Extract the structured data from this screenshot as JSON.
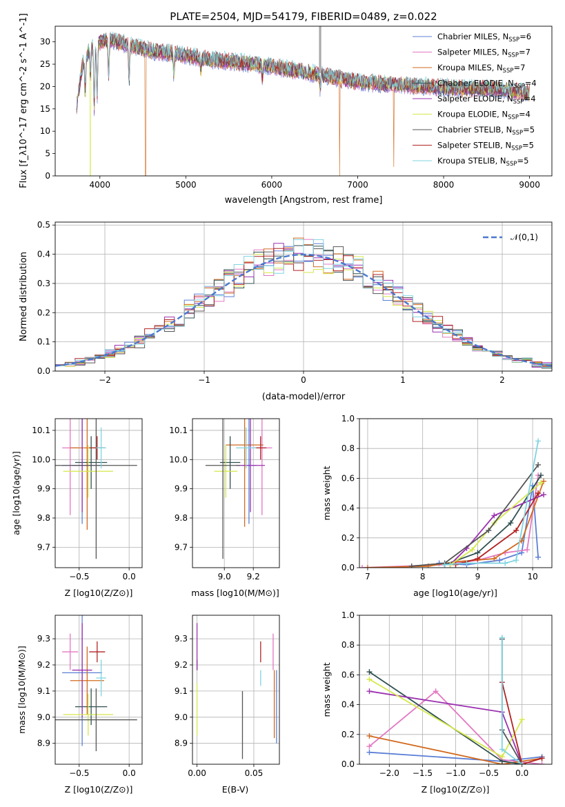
{
  "figure": {
    "title": "PLATE=2504, MJD=54179, FIBERID=0489, z=0.022"
  },
  "colors": {
    "chabrier_miles": "#5b7fd6",
    "salpeter_miles": "#e377c2",
    "kroupa_miles": "#d2691e",
    "chabrier_elodie": "#2f4f4f",
    "salpeter_elodie": "#9b30b0",
    "kroupa_elodie": "#d4e84a",
    "chabrier_stelib": "#555555",
    "salpeter_stelib": "#b22222",
    "kroupa_stelib": "#7fd4e0"
  },
  "chart_data": [
    {
      "id": "spectrum",
      "type": "line",
      "xlabel": "wavelength [Angstrom, rest frame]",
      "ylabel": "Flux [f_λ10^-17 erg cm^-2 s^-1 A^-1]",
      "xlim": [
        3480,
        9260
      ],
      "ylim": [
        0,
        33.5
      ],
      "xticks": [
        4000,
        5000,
        6000,
        7000,
        8000,
        9000
      ],
      "yticks": [
        0,
        5,
        10,
        15,
        20,
        25,
        30
      ],
      "legend_position": "top-right",
      "legend": [
        {
          "label": "Chabrier MILES, N",
          "sub": "SSP",
          "suffix": "=6",
          "color": "#5b7fd6"
        },
        {
          "label": "Salpeter MILES, N",
          "sub": "SSP",
          "suffix": "=7",
          "color": "#e377c2"
        },
        {
          "label": "Kroupa MILES, N",
          "sub": "SSP",
          "suffix": "=7",
          "color": "#d2691e"
        },
        {
          "label": "Chabrier ELODIE, N",
          "sub": "SSP",
          "suffix": "=4",
          "color": "#2f4f4f"
        },
        {
          "label": "Salpeter ELODIE, N",
          "sub": "SSP",
          "suffix": "=4",
          "color": "#9b30b0"
        },
        {
          "label": "Kroupa ELODIE, N",
          "sub": "SSP",
          "suffix": "=4",
          "color": "#d4e84a"
        },
        {
          "label": "Chabrier STELIB, N",
          "sub": "SSP",
          "suffix": "=5",
          "color": "#555555"
        },
        {
          "label": "Salpeter STELIB, N",
          "sub": "SSP",
          "suffix": "=5",
          "color": "#b22222"
        },
        {
          "label": "Kroupa STELIB, N",
          "sub": "SSP",
          "suffix": "=5",
          "color": "#7fd4e0"
        }
      ],
      "continuum": [
        [
          3730,
          16
        ],
        [
          3800,
          25
        ],
        [
          3900,
          29
        ],
        [
          4000,
          30
        ],
        [
          4100,
          30.5
        ],
        [
          4200,
          30
        ],
        [
          4400,
          29
        ],
        [
          4600,
          28
        ],
        [
          4800,
          27.5
        ],
        [
          5000,
          27
        ],
        [
          5300,
          26
        ],
        [
          5600,
          25.5
        ],
        [
          6000,
          24.5
        ],
        [
          6300,
          23.5
        ],
        [
          6600,
          22.5
        ],
        [
          7000,
          21
        ],
        [
          7400,
          20.5
        ],
        [
          7800,
          20
        ],
        [
          8200,
          19.5
        ],
        [
          8600,
          19.5
        ],
        [
          9000,
          18.5
        ]
      ],
      "absorption": [
        [
          3830,
          8
        ],
        [
          3890,
          6
        ],
        [
          3934,
          14
        ],
        [
          3968,
          12
        ],
        [
          4102,
          8
        ],
        [
          4340,
          8
        ],
        [
          4861,
          5
        ],
        [
          5175,
          3
        ],
        [
          5890,
          3
        ],
        [
          6563,
          3
        ]
      ],
      "drops": [
        [
          3890,
          0
        ],
        [
          4530,
          0
        ],
        [
          6790,
          0
        ],
        [
          7420,
          2
        ]
      ],
      "emission_spike": [
        6563,
        33.5
      ]
    },
    {
      "id": "residuals",
      "type": "histogram",
      "xlabel": "(data-model)/error",
      "ylabel": "Normed distribution",
      "xlim": [
        -2.5,
        2.5
      ],
      "ylim": [
        0,
        0.51
      ],
      "xticks": [
        -2,
        -1,
        0,
        1,
        2
      ],
      "yticks": [
        0.0,
        0.1,
        0.2,
        0.3,
        0.4,
        0.5
      ],
      "bin_width": 0.1,
      "reference": {
        "label": "𝒩(0,1)",
        "mean": 0,
        "sigma": 1,
        "color": "#4a78d0"
      },
      "legend_position": "top-right"
    },
    {
      "id": "age_vs_Z",
      "type": "scatter",
      "xlabel": "Z [log10(Z/Z⊙)]",
      "ylabel": "age [log10(age/yr)]",
      "xlim": [
        -0.74,
        0.13
      ],
      "ylim": [
        9.63,
        10.14
      ],
      "xticks": [
        -0.5,
        0.0
      ],
      "yticks": [
        9.7,
        9.8,
        9.9,
        10.0,
        10.1
      ],
      "points": [
        {
          "x": -0.47,
          "y": 9.98,
          "xerr": 0.2,
          "yerr": 0.2,
          "color": "#5b7fd6"
        },
        {
          "x": -0.59,
          "y": 10.04,
          "xerr": 0.08,
          "yerr": 0.23,
          "color": "#e377c2"
        },
        {
          "x": -0.42,
          "y": 10.04,
          "xerr": 0.17,
          "yerr": 0.28,
          "color": "#d2691e"
        },
        {
          "x": -0.38,
          "y": 9.99,
          "xerr": 0.16,
          "yerr": 0.09,
          "color": "#2f4f4f"
        },
        {
          "x": -0.47,
          "y": 9.98,
          "xerr": 0.1,
          "yerr": 0.16,
          "color": "#9b30b0"
        },
        {
          "x": -0.41,
          "y": 9.96,
          "xerr": 0.25,
          "yerr": 0.09,
          "color": "#d4e84a"
        },
        {
          "x": -0.33,
          "y": 9.98,
          "xerr": 0.41,
          "yerr": 0.32,
          "color": "#555555"
        },
        {
          "x": -0.32,
          "y": 10.04,
          "xerr": 0.08,
          "yerr": 0.04,
          "color": "#b22222"
        },
        {
          "x": -0.28,
          "y": 10.04,
          "xerr": 0.05,
          "yerr": 0.07,
          "color": "#7fd4e0"
        }
      ]
    },
    {
      "id": "age_vs_mass",
      "type": "scatter",
      "xlabel": "mass [log10(M/M⊙)]",
      "ylabel": "",
      "xlim": [
        8.78,
        9.38
      ],
      "ylim": [
        9.63,
        10.14
      ],
      "xticks": [
        9.0,
        9.2
      ],
      "yticks": [
        9.7,
        9.8,
        9.9,
        10.0,
        10.1
      ],
      "points": [
        {
          "x": 9.17,
          "y": 9.98,
          "xerr": 0.05,
          "yerr": 0.2,
          "color": "#5b7fd6"
        },
        {
          "x": 9.26,
          "y": 10.04,
          "xerr": 0.07,
          "yerr": 0.23,
          "color": "#e377c2"
        },
        {
          "x": 9.14,
          "y": 10.05,
          "xerr": 0.13,
          "yerr": 0.28,
          "color": "#d2691e"
        },
        {
          "x": 9.04,
          "y": 9.99,
          "xerr": 0.07,
          "yerr": 0.09,
          "color": "#2f4f4f"
        },
        {
          "x": 9.18,
          "y": 9.98,
          "xerr": 0.1,
          "yerr": 0.16,
          "color": "#9b30b0"
        },
        {
          "x": 9.01,
          "y": 9.96,
          "xerr": 0.08,
          "yerr": 0.09,
          "color": "#d4e84a"
        },
        {
          "x": 8.99,
          "y": 9.98,
          "xerr": 0.12,
          "yerr": 0.32,
          "color": "#555555"
        },
        {
          "x": 9.25,
          "y": 10.04,
          "xerr": 0.04,
          "yerr": 0.04,
          "color": "#b22222"
        },
        {
          "x": 9.15,
          "y": 10.04,
          "xerr": 0.07,
          "yerr": 0.07,
          "color": "#7fd4e0"
        }
      ]
    },
    {
      "id": "massweight_vs_age",
      "type": "line",
      "xlabel": "age [log10(age/yr)]",
      "ylabel": "mass weight",
      "xlim": [
        6.85,
        10.35
      ],
      "ylim": [
        0,
        1.0
      ],
      "xticks": [
        7,
        8,
        9,
        10
      ],
      "yticks": [
        0.0,
        0.2,
        0.4,
        0.6,
        0.8,
        1.0
      ],
      "series": [
        {
          "color": "#5b7fd6",
          "x": [
            8.3,
            8.8,
            9.4,
            9.8,
            10.0,
            10.1
          ],
          "y": [
            0.03,
            0.02,
            0.05,
            0.1,
            0.55,
            0.07
          ]
        },
        {
          "color": "#e377c2",
          "x": [
            6.9,
            8.4,
            9.0,
            9.5,
            9.9,
            10.1
          ],
          "y": [
            0.0,
            0.02,
            0.05,
            0.1,
            0.12,
            0.62
          ]
        },
        {
          "color": "#d2691e",
          "x": [
            7.0,
            8.1,
            8.6,
            9.3,
            9.8,
            10.2
          ],
          "y": [
            0.0,
            0.01,
            0.04,
            0.06,
            0.18,
            0.58
          ]
        },
        {
          "color": "#2f4f4f",
          "x": [
            8.4,
            9.0,
            9.6,
            10.15
          ],
          "y": [
            0.02,
            0.1,
            0.3,
            0.62
          ]
        },
        {
          "color": "#9b30b0",
          "x": [
            8.5,
            8.8,
            9.3,
            10.2
          ],
          "y": [
            0.02,
            0.13,
            0.35,
            0.49
          ]
        },
        {
          "color": "#d4e84a",
          "x": [
            8.5,
            8.9,
            9.3,
            10.15
          ],
          "y": [
            0.02,
            0.12,
            0.3,
            0.57
          ]
        },
        {
          "color": "#555555",
          "x": [
            7.8,
            8.4,
            9.2,
            10.1
          ],
          "y": [
            0.01,
            0.03,
            0.25,
            0.69
          ]
        },
        {
          "color": "#b22222",
          "x": [
            8.6,
            9.0,
            9.7,
            10.1
          ],
          "y": [
            0.02,
            0.06,
            0.25,
            0.5
          ]
        },
        {
          "color": "#7fd4e0",
          "x": [
            8.4,
            8.8,
            9.5,
            9.7,
            10.1
          ],
          "y": [
            0.02,
            0.03,
            0.03,
            0.05,
            0.85
          ]
        }
      ]
    },
    {
      "id": "mass_vs_Z",
      "type": "scatter",
      "xlabel": "Z [log10(Z/Z⊙)]",
      "ylabel": "mass [log10(M/M⊙)]",
      "xlim": [
        -0.74,
        0.13
      ],
      "ylim": [
        8.82,
        9.39
      ],
      "xticks": [
        -0.5,
        0.0
      ],
      "yticks": [
        8.9,
        9.0,
        9.1,
        9.2,
        9.3
      ],
      "points": [
        {
          "x": -0.47,
          "y": 9.17,
          "xerr": 0.2,
          "yerr": 0.28,
          "color": "#5b7fd6"
        },
        {
          "x": -0.59,
          "y": 9.25,
          "xerr": 0.08,
          "yerr": 0.07,
          "color": "#e377c2"
        },
        {
          "x": -0.42,
          "y": 9.14,
          "xerr": 0.17,
          "yerr": 0.13,
          "color": "#d2691e"
        },
        {
          "x": -0.38,
          "y": 9.04,
          "xerr": 0.16,
          "yerr": 0.07,
          "color": "#2f4f4f"
        },
        {
          "x": -0.47,
          "y": 9.18,
          "xerr": 0.1,
          "yerr": 0.18,
          "color": "#9b30b0"
        },
        {
          "x": -0.41,
          "y": 9.01,
          "xerr": 0.25,
          "yerr": 0.08,
          "color": "#d4e84a"
        },
        {
          "x": -0.33,
          "y": 8.99,
          "xerr": 0.41,
          "yerr": 0.12,
          "color": "#555555"
        },
        {
          "x": -0.32,
          "y": 9.25,
          "xerr": 0.08,
          "yerr": 0.04,
          "color": "#b22222"
        },
        {
          "x": -0.28,
          "y": 9.15,
          "xerr": 0.05,
          "yerr": 0.07,
          "color": "#7fd4e0"
        }
      ]
    },
    {
      "id": "mass_vs_ebv",
      "type": "scatter",
      "xlabel": "E(B-V)",
      "ylabel": "",
      "xlim": [
        -0.004,
        0.0725
      ],
      "ylim": [
        8.82,
        9.39
      ],
      "xticks": [
        0.0,
        0.05
      ],
      "yticks": [
        8.9,
        9.0,
        9.1,
        9.2,
        9.3
      ],
      "points": [
        {
          "x": 0.07,
          "y": 9.04,
          "yerr": 0.14,
          "color": "#5b7fd6"
        },
        {
          "x": 0.067,
          "y": 9.25,
          "yerr": 0.07,
          "color": "#e377c2"
        },
        {
          "x": 0.068,
          "y": 9.05,
          "yerr": 0.13,
          "color": "#d2691e"
        },
        {
          "x": 0.0,
          "y": 9.2,
          "yerr": 0.02,
          "color": "#2f4f4f"
        },
        {
          "x": 0.0,
          "y": 9.27,
          "yerr": 0.09,
          "color": "#9b30b0"
        },
        {
          "x": 0.0,
          "y": 9.03,
          "yerr": 0.1,
          "color": "#d4e84a"
        },
        {
          "x": 0.04,
          "y": 8.97,
          "yerr": 0.13,
          "color": "#555555"
        },
        {
          "x": 0.056,
          "y": 9.25,
          "yerr": 0.04,
          "color": "#b22222"
        },
        {
          "x": 0.056,
          "y": 9.15,
          "yerr": 0.03,
          "color": "#7fd4e0"
        }
      ]
    },
    {
      "id": "massweight_vs_Z",
      "type": "line",
      "xlabel": "Z [log10(Z/Z⊙)]",
      "ylabel": "mass weight",
      "xlim": [
        -2.45,
        0.45
      ],
      "ylim": [
        0,
        1.0
      ],
      "xticks": [
        -2.0,
        -1.5,
        -1.0,
        -0.5,
        0.0
      ],
      "yticks": [
        0.0,
        0.2,
        0.4,
        0.6,
        0.8,
        1.0
      ],
      "series": [
        {
          "color": "#5b7fd6",
          "x": [
            -2.3,
            -0.3,
            0.3
          ],
          "y": [
            0.08,
            0.02,
            0.05
          ]
        },
        {
          "color": "#e377c2",
          "x": [
            -2.3,
            -1.3,
            -0.3,
            0.3
          ],
          "y": [
            0.12,
            0.49,
            0.03,
            0.0
          ]
        },
        {
          "color": "#d2691e",
          "x": [
            -2.3,
            -0.3,
            0.3
          ],
          "y": [
            0.19,
            0.0,
            0.04
          ]
        },
        {
          "color": "#2f4f4f",
          "x": [
            -2.3,
            -0.3,
            0.0
          ],
          "y": [
            0.62,
            0.02,
            0.0
          ]
        },
        {
          "color": "#9b30b0",
          "x": [
            -2.3,
            -0.3,
            0.0
          ],
          "y": [
            0.49,
            0.35,
            0.0
          ]
        },
        {
          "color": "#d4e84a",
          "x": [
            -2.3,
            -0.3,
            0.0
          ],
          "y": [
            0.57,
            0.05,
            0.3
          ]
        },
        {
          "color": "#555555",
          "x": [
            -0.3,
            -0.3,
            0.0
          ],
          "y": [
            0.84,
            0.23,
            0.0
          ]
        },
        {
          "color": "#b22222",
          "x": [
            -0.3,
            0.0,
            0.3
          ],
          "y": [
            0.55,
            0.0,
            0.04
          ]
        },
        {
          "color": "#7fd4e0",
          "x": [
            -0.3,
            -0.3,
            0.0
          ],
          "y": [
            0.85,
            0.1,
            0.0
          ]
        }
      ]
    }
  ]
}
